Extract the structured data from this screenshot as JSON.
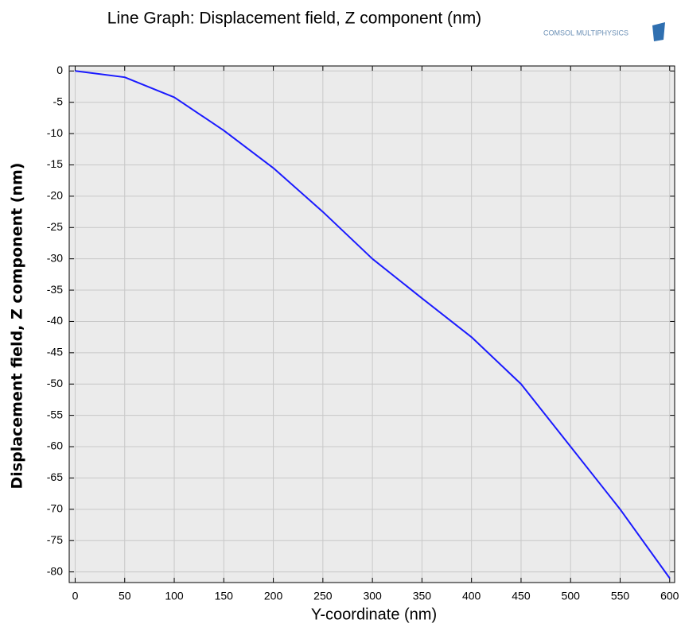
{
  "chart_data": {
    "type": "line",
    "title": "Line Graph: Displacement field, Z component (nm)",
    "logo": "COMSOL MULTIPHYSICS",
    "x_label": "Y-coordinate (nm)",
    "y_label": "Displacement field, Z component (nm)",
    "x": [
      0,
      50,
      100,
      150,
      200,
      250,
      300,
      350,
      400,
      450,
      500,
      550,
      600
    ],
    "series": [
      {
        "name": "Displacement field, Z component",
        "color": "#1a1aff",
        "values": [
          0,
          -1,
          -4.2,
          -9.5,
          -15.5,
          -22.5,
          -30,
          -36.3,
          -42.5,
          -50,
          -60,
          -70,
          -81
        ]
      }
    ],
    "xlim": [
      -6,
      605
    ],
    "xticks": [
      0,
      50,
      100,
      150,
      200,
      250,
      300,
      350,
      400,
      450,
      500,
      550,
      600
    ],
    "ylim": [
      -81.7,
      0.8
    ],
    "yticks": [
      0,
      -5,
      -10,
      -15,
      -20,
      -25,
      -30,
      -35,
      -40,
      -45,
      -50,
      -55,
      -60,
      -65,
      -70,
      -75,
      -80
    ],
    "grid": true
  }
}
